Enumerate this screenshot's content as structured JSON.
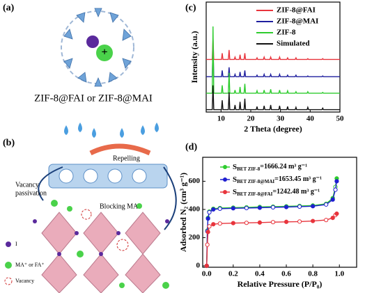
{
  "panels": {
    "a": {
      "tag": "(a)",
      "caption": "ZIF-8@FAI or ZIF-8@MAI"
    },
    "b": {
      "tag": "(b)",
      "repelling": "Repelling",
      "vacancy_1": "Vacancy",
      "vacancy_2": "passivation",
      "blocking": "Blocking MA⁺",
      "legend_i": "I",
      "legend_cation": "MA⁺ or FA⁺",
      "legend_vacancy": "Vacancy"
    },
    "c": {
      "tag": "(c)"
    },
    "d": {
      "tag": "(d)"
    }
  },
  "chart_data": [
    {
      "type": "line",
      "xlabel": "2 Theta (degree)",
      "ylabel": "Intensity (a.u.)",
      "xlim": [
        5,
        50
      ],
      "xticks": [
        10,
        20,
        30,
        40,
        50
      ],
      "ylim": [
        0,
        140
      ],
      "x": [
        5,
        7.05,
        7.3,
        7.55,
        10.15,
        10.4,
        10.65,
        12.45,
        12.7,
        12.95,
        14.45,
        14.7,
        14.95,
        16.15,
        16.4,
        16.65,
        17.75,
        18,
        18.25,
        21.85,
        22.1,
        22.35,
        24.25,
        24.5,
        24.75,
        26.45,
        26.7,
        26.95,
        29.45,
        29.7,
        29.95,
        32.15,
        32.4,
        32.65,
        34.95,
        35.2,
        35.45,
        38.95,
        39.2,
        39.45,
        43.95,
        44.2,
        44.45,
        50
      ],
      "series": [
        {
          "name": "ZIF-8@FAI",
          "color": "#e8343c",
          "values": [
            67,
            67,
            94,
            67,
            67,
            75,
            67,
            67,
            79,
            67,
            67,
            70,
            67,
            67,
            73,
            67,
            67,
            75,
            67,
            67,
            69,
            67,
            67,
            70,
            67,
            67,
            70,
            67,
            67,
            70,
            67,
            67,
            69,
            67,
            67,
            69,
            67,
            67,
            68,
            67,
            67,
            68,
            67,
            67
          ]
        },
        {
          "name": "ZIF-8@MAI",
          "color": "#1f1f9e",
          "values": [
            45,
            45,
            85,
            45,
            45,
            53,
            45,
            45,
            57,
            45,
            45,
            48,
            45,
            45,
            51,
            45,
            45,
            53,
            45,
            45,
            47,
            45,
            45,
            48,
            45,
            45,
            48,
            45,
            45,
            48,
            45,
            45,
            47,
            45,
            45,
            47,
            45,
            45,
            46,
            45,
            45,
            46,
            45,
            45
          ]
        },
        {
          "name": "ZIF-8",
          "color": "#2ecc2e",
          "values": [
            24,
            24,
            109,
            24,
            24,
            34,
            24,
            24,
            50,
            24,
            24,
            28,
            24,
            24,
            32,
            24,
            24,
            36,
            24,
            24,
            27,
            24,
            24,
            28,
            24,
            24,
            29,
            24,
            24,
            28,
            24,
            24,
            27,
            24,
            24,
            26,
            24,
            24,
            26,
            24,
            24,
            25,
            24,
            24
          ]
        },
        {
          "name": "Simulated",
          "color": "#111111",
          "values": [
            3,
            3,
            34,
            3,
            3,
            15,
            3,
            3,
            25,
            3,
            3,
            9,
            3,
            3,
            13,
            3,
            3,
            17,
            3,
            3,
            7,
            3,
            3,
            8,
            3,
            3,
            9,
            3,
            3,
            8,
            3,
            3,
            7,
            3,
            3,
            6,
            3,
            3,
            6,
            3,
            3,
            5,
            3,
            3
          ]
        }
      ]
    },
    {
      "type": "line",
      "markers": true,
      "xlabel": "Relative Pressure (P/P₀)",
      "ylabel": "Adsorbed N₂ (cm³ g⁻¹)",
      "xlim": [
        -0.03,
        1.13
      ],
      "xticks": [
        {
          "value": 0,
          "label": "0.0"
        },
        0.2,
        0.4,
        0.6,
        0.8,
        {
          "value": 1,
          "label": "1.0"
        }
      ],
      "ylim": [
        -10,
        770
      ],
      "yticks": [
        0,
        200,
        400,
        600
      ],
      "legend_prefix": "S",
      "x": [
        0,
        0.005,
        0.01,
        0.02,
        0.05,
        0.1,
        0.2,
        0.3,
        0.4,
        0.5,
        0.6,
        0.7,
        0.8,
        0.9,
        0.95,
        0.97,
        0.98
      ],
      "series": [
        {
          "name": "BET ZIF-8",
          "legend_value": "=1666.24 m³ g⁻¹",
          "color": "#2ecc2e",
          "values": [
            0,
            250,
            340,
            385,
            405,
            410,
            413,
            415,
            418,
            420,
            422,
            425,
            428,
            440,
            480,
            560,
            620
          ]
        },
        {
          "name": "BET ZIF-8@MAI",
          "legend_value": "=1653.45 m³ g⁻¹",
          "color": "#1f1fd0",
          "values": [
            0,
            245,
            335,
            380,
            400,
            405,
            408,
            410,
            412,
            415,
            417,
            420,
            423,
            435,
            470,
            540,
            600
          ]
        },
        {
          "name": "BET ZIF-8@FAI",
          "legend_value": "=1242.48 m³ g⁻¹",
          "color": "#e8343c",
          "values": [
            0,
            150,
            240,
            280,
            295,
            300,
            303,
            305,
            307,
            310,
            312,
            314,
            318,
            325,
            340,
            360,
            370
          ]
        }
      ]
    }
  ]
}
